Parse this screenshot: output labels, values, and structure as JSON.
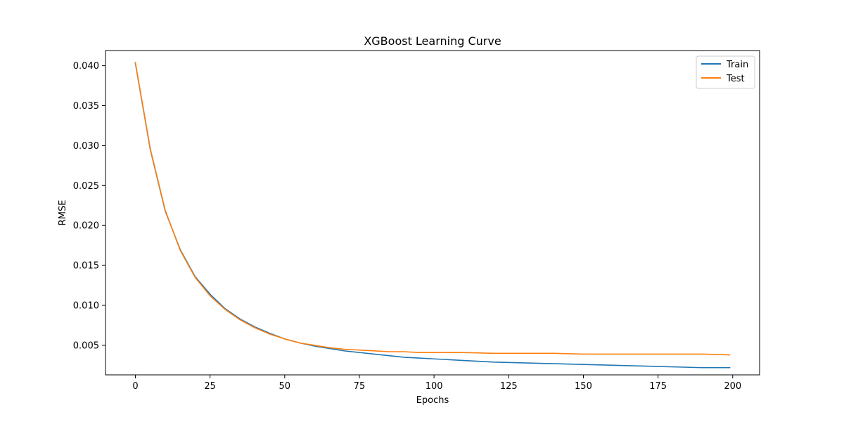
{
  "chart_data": {
    "type": "line",
    "title": "XGBoost Learning Curve",
    "xlabel": "Epochs",
    "ylabel": "RMSE",
    "xlim": [
      -10,
      209
    ],
    "ylim": [
      0.0013,
      0.0419
    ],
    "x_ticks": [
      0,
      25,
      50,
      75,
      100,
      125,
      150,
      175,
      200
    ],
    "x_tick_labels": [
      "0",
      "25",
      "50",
      "75",
      "100",
      "125",
      "150",
      "175",
      "200"
    ],
    "y_ticks": [
      0.005,
      0.01,
      0.015,
      0.02,
      0.025,
      0.03,
      0.035,
      0.04
    ],
    "y_tick_labels": [
      "0.005",
      "0.010",
      "0.015",
      "0.020",
      "0.025",
      "0.030",
      "0.035",
      "0.040"
    ],
    "grid": false,
    "legend_position": "top-right",
    "x": [
      0,
      5,
      10,
      15,
      20,
      25,
      30,
      35,
      40,
      45,
      50,
      55,
      60,
      65,
      70,
      75,
      80,
      85,
      90,
      95,
      100,
      110,
      120,
      130,
      140,
      150,
      160,
      170,
      180,
      190,
      199
    ],
    "series": [
      {
        "name": "Train",
        "color": "#1f77b4",
        "values": [
          0.0403,
          0.0295,
          0.0218,
          0.017,
          0.0136,
          0.0114,
          0.0096,
          0.0083,
          0.0073,
          0.0065,
          0.0058,
          0.0053,
          0.0049,
          0.0046,
          0.0043,
          0.0041,
          0.0039,
          0.0037,
          0.0035,
          0.0034,
          0.0033,
          0.0031,
          0.0029,
          0.0028,
          0.0027,
          0.0026,
          0.0025,
          0.0024,
          0.0023,
          0.0022,
          0.0022
        ]
      },
      {
        "name": "Test",
        "color": "#ff7f0e",
        "values": [
          0.0404,
          0.0296,
          0.0219,
          0.0169,
          0.0135,
          0.0112,
          0.0095,
          0.0082,
          0.0072,
          0.0064,
          0.0058,
          0.0053,
          0.005,
          0.0047,
          0.0045,
          0.0044,
          0.0043,
          0.0042,
          0.0042,
          0.0041,
          0.0041,
          0.0041,
          0.004,
          0.004,
          0.004,
          0.0039,
          0.0039,
          0.0039,
          0.0039,
          0.0039,
          0.0038
        ]
      }
    ]
  }
}
